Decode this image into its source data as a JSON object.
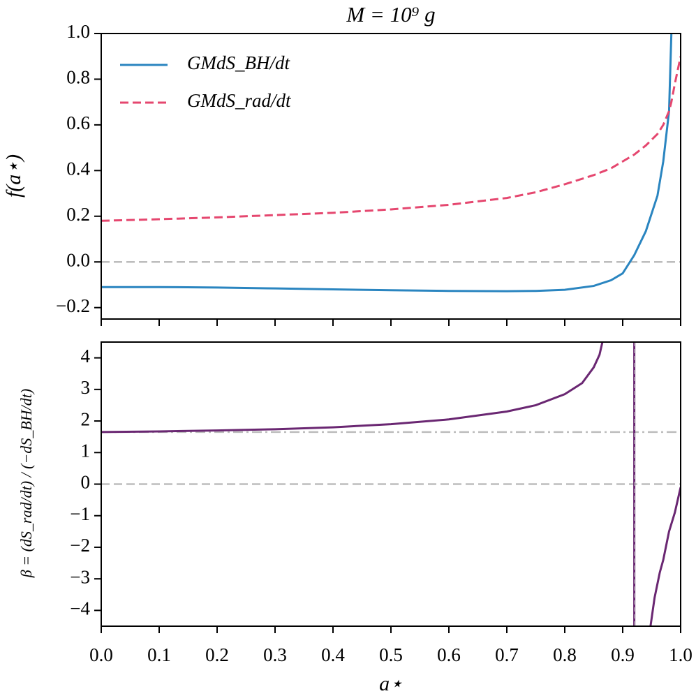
{
  "chart_data": [
    {
      "type": "line",
      "title": "M = 10⁹ g",
      "y_label": "f(a⋆)",
      "x": [
        0,
        0.1,
        0.2,
        0.3,
        0.4,
        0.5,
        0.6,
        0.7,
        0.75,
        0.8,
        0.85,
        0.88,
        0.9,
        0.92,
        0.94,
        0.96,
        0.97,
        0.98,
        0.984,
        0.99,
        1.0
      ],
      "series": [
        {
          "name": "GMdS_BH/dt",
          "color": "#2a85c0",
          "dash": "solid",
          "values": [
            -0.11,
            -0.11,
            -0.112,
            -0.116,
            -0.12,
            -0.124,
            -0.127,
            -0.128,
            -0.127,
            -0.122,
            -0.105,
            -0.08,
            -0.05,
            0.03,
            0.135,
            0.29,
            0.44,
            0.66,
            1.0,
            null,
            null
          ]
        },
        {
          "name": "GMdS_rad/dt",
          "color": "#e5476f",
          "dash": "dashed",
          "values": [
            0.18,
            0.187,
            0.195,
            0.205,
            0.215,
            0.23,
            0.25,
            0.28,
            0.305,
            0.34,
            0.38,
            0.41,
            0.44,
            0.47,
            0.51,
            0.56,
            0.6,
            0.66,
            0.7,
            0.78,
            0.9
          ]
        }
      ],
      "hlines": [
        0
      ],
      "xlim": [
        0,
        1
      ],
      "ylim": [
        -0.25,
        1.0
      ],
      "yticks": [
        {
          "value": -0.2,
          "label": "−0.2"
        },
        {
          "value": 0,
          "label": "0.0"
        },
        0.2,
        0.4,
        0.6,
        0.8,
        {
          "value": 1.0,
          "label": "1.0"
        }
      ],
      "legend": "upper left"
    },
    {
      "type": "line",
      "x_label": "a⋆",
      "y_label": "β = (dS_rad/dt) / (−dS_BH/dt)",
      "x": [
        0,
        0.1,
        0.2,
        0.3,
        0.4,
        0.5,
        0.6,
        0.7,
        0.75,
        0.8,
        0.83,
        0.85,
        0.86,
        0.865,
        0.92,
        0.948,
        0.955,
        0.964,
        0.97,
        0.98,
        0.99,
        1.0
      ],
      "series": [
        {
          "name": null,
          "color": "#6a2772",
          "dash": "solid",
          "values": [
            1.65,
            1.67,
            1.7,
            1.74,
            1.8,
            1.9,
            2.05,
            2.3,
            2.5,
            2.85,
            3.2,
            3.7,
            4.1,
            4.5,
            null,
            -4.5,
            -3.6,
            -2.8,
            -2.4,
            -1.5,
            -0.9,
            -0.1
          ]
        }
      ],
      "hlines": [
        0,
        1.65
      ],
      "vlines": [
        0.92
      ],
      "xlim": [
        0,
        1
      ],
      "ylim": [
        -4.5,
        4.5
      ],
      "xticks": [
        {
          "value": 0,
          "label": "0.0"
        },
        0.1,
        0.2,
        0.3,
        0.4,
        0.5,
        0.6,
        0.7,
        0.8,
        0.9,
        {
          "value": 1.0,
          "label": "1.0"
        }
      ],
      "yticks": [
        {
          "value": -4,
          "label": "−4"
        },
        {
          "value": -3,
          "label": "−3"
        },
        {
          "value": -2,
          "label": "−2"
        },
        {
          "value": -1,
          "label": "−1"
        },
        0,
        1,
        2,
        3,
        4
      ]
    }
  ]
}
